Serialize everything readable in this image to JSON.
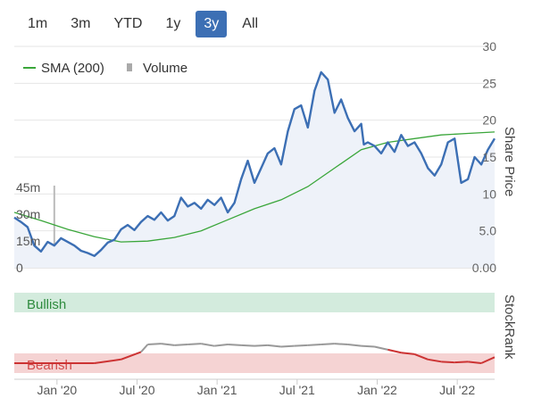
{
  "range_buttons": [
    {
      "label": "1m",
      "active": false
    },
    {
      "label": "3m",
      "active": false
    },
    {
      "label": "YTD",
      "active": false
    },
    {
      "label": "1y",
      "active": false
    },
    {
      "label": "3y",
      "active": true
    },
    {
      "label": "All",
      "active": false
    }
  ],
  "legend": {
    "sma_label": "SMA (200)",
    "volume_label": "Volume",
    "sma_color": "#3aa63a",
    "volume_color": "#aaaaaa"
  },
  "colors": {
    "price_line": "#3c6fb4",
    "price_fill": "#eef2f9",
    "bullish_band": "#d3ebdd",
    "bearish_band": "#f5d3d3",
    "bullish_text": "#2e8b3e",
    "bearish_text": "#d14a4a",
    "rank_bull": "#999999",
    "rank_bear": "#cc3333"
  },
  "chart_data": {
    "type": "line",
    "right_axis_title": "Share Price",
    "price_ticks": [
      "30",
      "25",
      "20",
      "15",
      "10",
      "5.0",
      "0.00"
    ],
    "price_range": [
      0,
      30
    ],
    "volume_ticks": [
      "45m",
      "30m",
      "15m",
      "0"
    ],
    "volume_range": [
      0,
      60
    ],
    "x_ticks": [
      "Jan '20",
      "Jul '20",
      "Jan '21",
      "Jul '21",
      "Jan '22",
      "Jul '22"
    ],
    "x_range": [
      0,
      36
    ],
    "x_tick_positions": [
      3.2,
      9.2,
      15.2,
      21.2,
      27.2,
      33.2
    ],
    "series": [
      {
        "name": "Share Price",
        "x": [
          0,
          0.5,
          1,
          1.5,
          2,
          2.5,
          3,
          3.5,
          4,
          4.5,
          5,
          5.5,
          6,
          6.5,
          7,
          7.5,
          8,
          8.5,
          9,
          9.5,
          10,
          10.5,
          11,
          11.5,
          12,
          12.5,
          13,
          13.5,
          14,
          14.5,
          15,
          15.5,
          16,
          16.5,
          17,
          17.5,
          18,
          18.5,
          19,
          19.5,
          20,
          20.5,
          21,
          21.5,
          22,
          22.5,
          23,
          23.5,
          24,
          24.5,
          25,
          25.5,
          26,
          26.2,
          26.5,
          27,
          27.5,
          28,
          28.5,
          29,
          29.5,
          30,
          30.5,
          31,
          31.5,
          32,
          32.5,
          33,
          33.5,
          34,
          34.5,
          35,
          35.5,
          36
        ],
        "values": [
          6.8,
          6.2,
          5.5,
          3.0,
          2.2,
          3.5,
          3.0,
          4.0,
          3.5,
          3.0,
          2.3,
          2.0,
          1.6,
          2.4,
          3.4,
          3.8,
          5.2,
          5.8,
          5.1,
          6.2,
          7.0,
          6.5,
          7.5,
          6.4,
          7.0,
          9.5,
          8.3,
          8.8,
          8.0,
          9.2,
          8.5,
          9.5,
          7.5,
          8.8,
          12.0,
          14.5,
          11.5,
          13.5,
          15.5,
          16.2,
          14.0,
          18.5,
          21.5,
          22.0,
          19.0,
          24.0,
          26.5,
          25.5,
          21.0,
          22.8,
          20.3,
          18.5,
          19.5,
          16.7,
          17.0,
          16.5,
          15.5,
          17.0,
          15.7,
          18.0,
          16.5,
          17.0,
          15.5,
          13.5,
          12.5,
          14.0,
          17.0,
          17.5,
          11.5,
          12.0,
          15.0,
          14.0,
          16.0,
          17.5
        ],
        "color": "#3c6fb4"
      },
      {
        "name": "SMA (200)",
        "x": [
          0,
          2,
          4,
          6,
          8,
          10,
          12,
          14,
          16,
          18,
          20,
          22,
          24,
          26,
          28,
          30,
          32,
          34,
          36
        ],
        "values": [
          7.5,
          6.4,
          5.2,
          4.2,
          3.5,
          3.6,
          4.1,
          5.0,
          6.5,
          8.0,
          9.2,
          11.0,
          13.5,
          16.0,
          17.0,
          17.5,
          18.0,
          18.2,
          18.4
        ],
        "color": "#3aa63a"
      }
    ],
    "volume": {
      "x": [
        0.6,
        1.2,
        2.4,
        3.0,
        3.4,
        4.1,
        4.8,
        5.6,
        6.2,
        6.8,
        7.4,
        8.1,
        9.5,
        11.4,
        13.0,
        15.6,
        17.3,
        19.2,
        20.3,
        21.4,
        22.6,
        24.1,
        25.6,
        26.7,
        27.9,
        29.0,
        30.2,
        31.4,
        32.6,
        33.9
      ],
      "values": [
        5,
        3,
        4,
        46,
        6,
        3,
        4,
        3,
        4,
        5,
        3,
        2,
        3,
        2,
        2,
        3,
        2,
        2,
        3,
        4,
        8,
        3,
        3,
        2,
        3,
        2,
        2,
        3,
        2,
        3
      ]
    },
    "stockrank": {
      "title": "StockRank",
      "zones": [
        "Bullish",
        "Bearish"
      ],
      "x": [
        0,
        2,
        4,
        6,
        8,
        9.5,
        10,
        11,
        12,
        13,
        14,
        15,
        16,
        17,
        18,
        19,
        20,
        21,
        22,
        23,
        24,
        25,
        26,
        27,
        28,
        29,
        30,
        31,
        32,
        33,
        34,
        35,
        36
      ],
      "values": [
        0,
        0,
        0,
        0,
        0.5,
        1.5,
        2.5,
        2.6,
        2.4,
        2.5,
        2.6,
        2.3,
        2.5,
        2.4,
        2.3,
        2.4,
        2.2,
        2.3,
        2.4,
        2.5,
        2.6,
        2.5,
        2.3,
        2.2,
        1.8,
        1.4,
        1.2,
        0.5,
        0.2,
        0.1,
        0.2,
        0.0,
        0.8
      ]
    }
  }
}
